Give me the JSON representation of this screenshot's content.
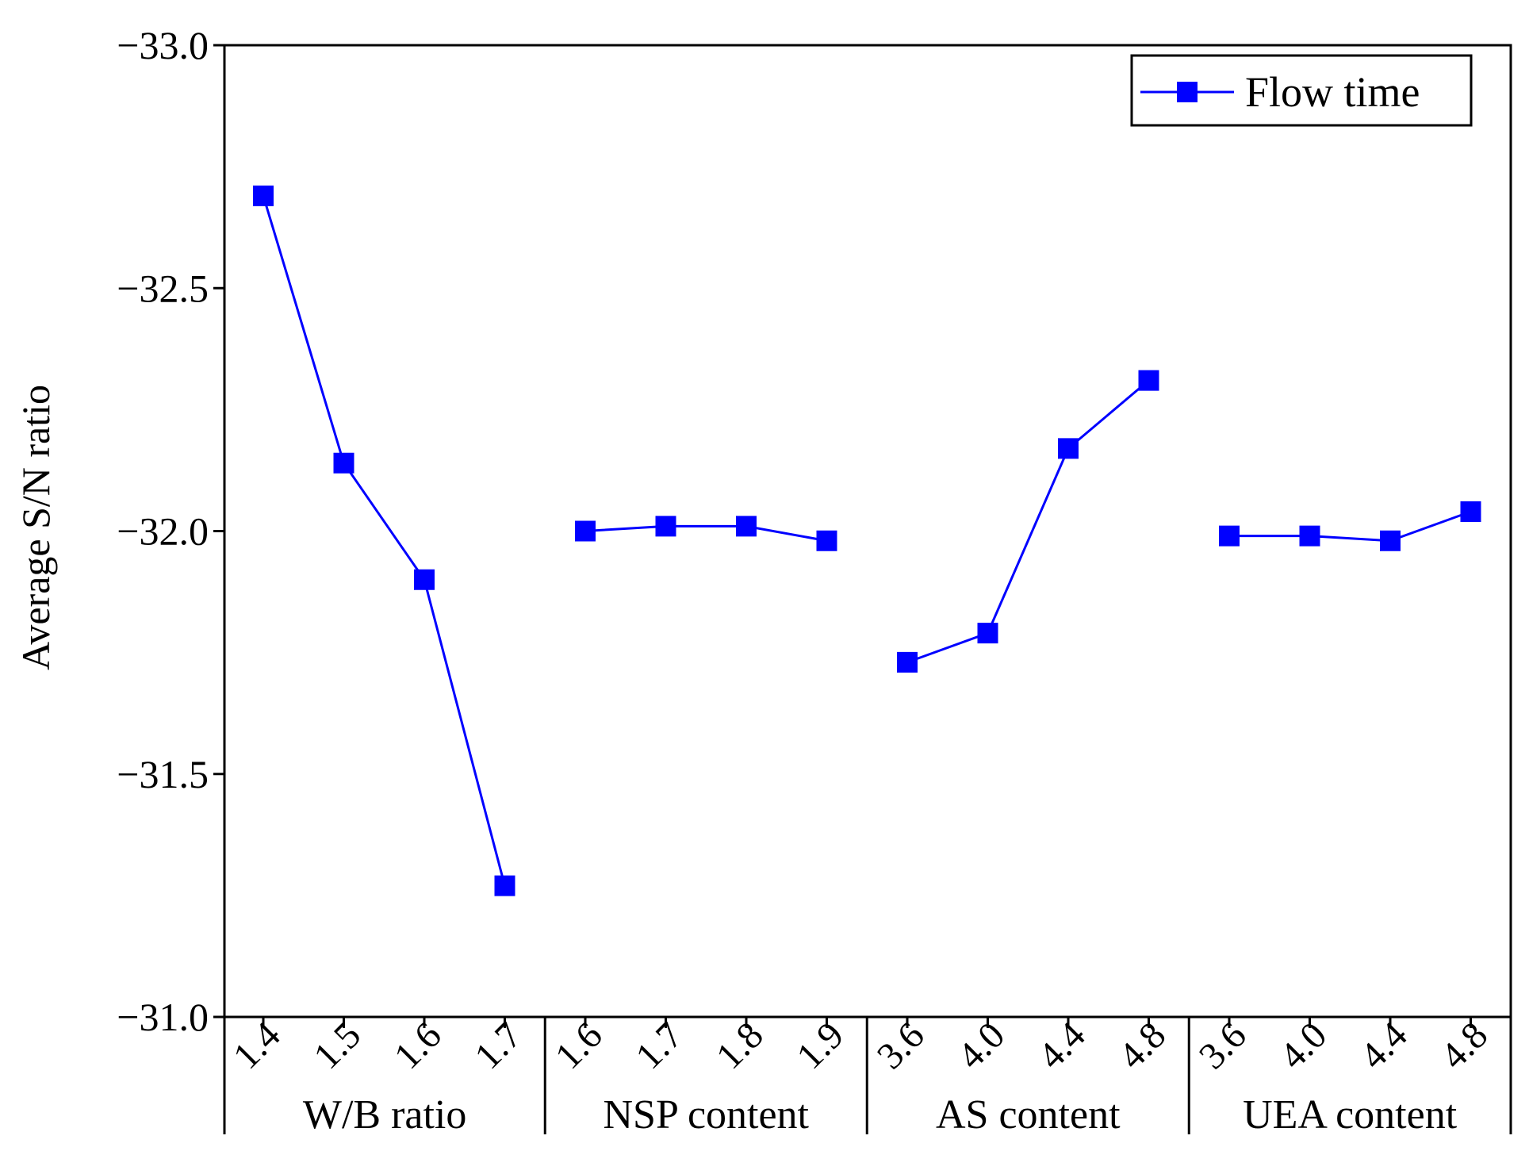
{
  "chart_data": {
    "type": "line",
    "title": "",
    "ylabel": "Average S/N ratio",
    "xlabel": "",
    "ylim": [
      -33.0,
      -31.0
    ],
    "y_direction": "reversed",
    "yticks": [
      -33.0,
      -32.5,
      -32.0,
      -31.5,
      -31.0
    ],
    "ytick_labels": [
      "−33.0",
      "−32.5",
      "−32.0",
      "−31.5",
      "−31.0"
    ],
    "grid": false,
    "legend": {
      "position": "top-right",
      "entries": [
        "Flow time"
      ]
    },
    "groups": [
      {
        "name": "W/B ratio",
        "categories": [
          "1.4",
          "1.5",
          "1.6",
          "1.7"
        ],
        "values": [
          -32.69,
          -32.14,
          -31.9,
          -31.27
        ]
      },
      {
        "name": "NSP content",
        "categories": [
          "1.6",
          "1.7",
          "1.8",
          "1.9"
        ],
        "values": [
          -32.0,
          -32.01,
          -32.01,
          -31.98
        ]
      },
      {
        "name": "AS content",
        "categories": [
          "3.6",
          "4.0",
          "4.4",
          "4.8"
        ],
        "values": [
          -31.73,
          -31.79,
          -32.17,
          -32.31
        ]
      },
      {
        "name": "UEA content",
        "categories": [
          "3.6",
          "4.0",
          "4.4",
          "4.8"
        ],
        "values": [
          -31.99,
          -31.99,
          -31.98,
          -32.04
        ]
      }
    ],
    "series": [
      {
        "name": "Flow time",
        "color": "#0000ff",
        "marker": "square"
      }
    ]
  }
}
